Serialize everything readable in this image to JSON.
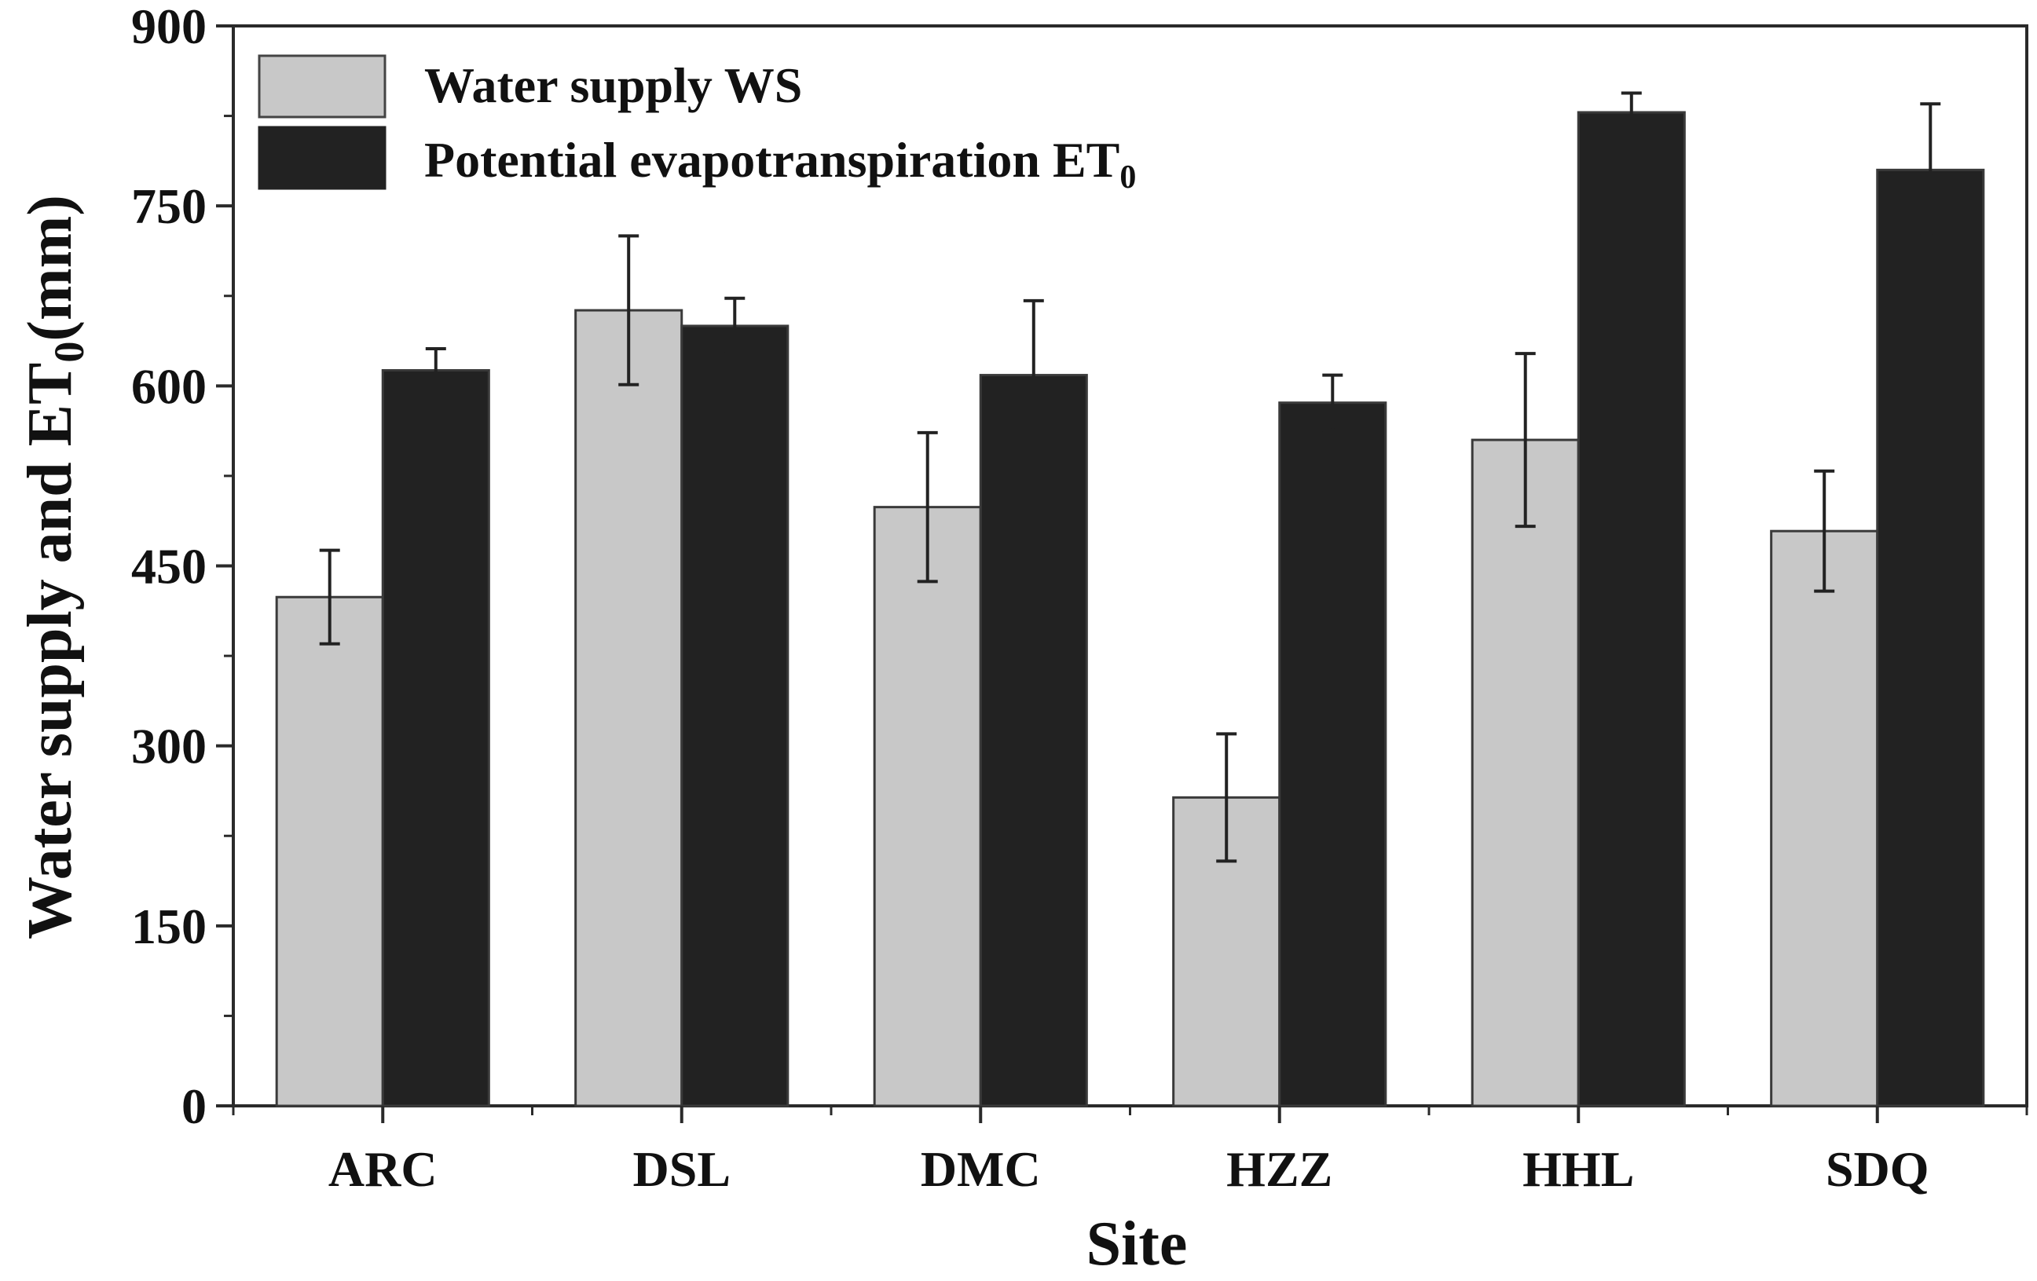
{
  "chart_data": {
    "type": "bar",
    "title": "",
    "xlabel": "Site",
    "ylabel": {
      "main": "Water supply and ET",
      "subscript": "0",
      "suffix": "(mm)"
    },
    "categories": [
      "ARC",
      "DSL",
      "DMC",
      "HZZ",
      "HHL",
      "SDQ"
    ],
    "ylim": [
      0,
      900
    ],
    "yticks": [
      0,
      150,
      300,
      450,
      600,
      750,
      900
    ],
    "yticks_labels": [
      "0",
      "150",
      "300",
      "450",
      "600",
      "750",
      "900"
    ],
    "grid": false,
    "legend_position": "top-left",
    "series": [
      {
        "name": "Water supply WS",
        "legend_label": {
          "main": "Water supply WS",
          "subscript": ""
        },
        "color": "#c8c8c8",
        "values": [
          424,
          663,
          499,
          257,
          555,
          479
        ],
        "errors": [
          39,
          62,
          62,
          53,
          72,
          50
        ]
      },
      {
        "name": "Potential evapotranspiration ET0",
        "legend_label": {
          "main": "Potential evapotranspiration ET",
          "subscript": "0"
        },
        "color": "#222222",
        "values": [
          613,
          650,
          609,
          586,
          828,
          780
        ],
        "errors": [
          18,
          23,
          62,
          23,
          16,
          55
        ]
      }
    ]
  }
}
